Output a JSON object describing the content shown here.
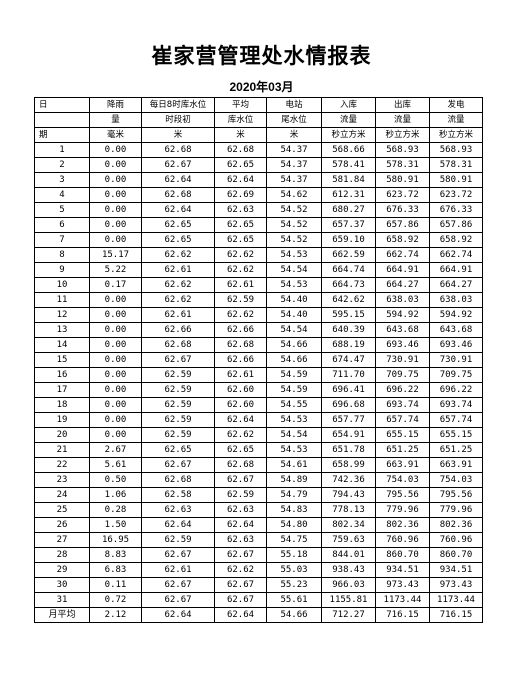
{
  "title": "崔家营管理处水情报表",
  "subtitle": "2020年03月",
  "header_rows": [
    [
      "日",
      "降雨",
      "每日8时库水位",
      "平均",
      "电站",
      "入库",
      "出库",
      "发电"
    ],
    [
      "",
      "量",
      "时段初",
      "库水位",
      "尾水位",
      "流量",
      "流量",
      "流量"
    ],
    [
      "期",
      "毫米",
      "米",
      "米",
      "米",
      "秒立方米",
      "秒立方米",
      "秒立方米"
    ]
  ],
  "rows": [
    [
      "1",
      "0.00",
      "62.68",
      "62.68",
      "54.37",
      "568.66",
      "568.93",
      "568.93"
    ],
    [
      "2",
      "0.00",
      "62.67",
      "62.65",
      "54.37",
      "578.41",
      "578.31",
      "578.31"
    ],
    [
      "3",
      "0.00",
      "62.64",
      "62.64",
      "54.37",
      "581.84",
      "580.91",
      "580.91"
    ],
    [
      "4",
      "0.00",
      "62.68",
      "62.69",
      "54.62",
      "612.31",
      "623.72",
      "623.72"
    ],
    [
      "5",
      "0.00",
      "62.64",
      "62.63",
      "54.52",
      "680.27",
      "676.33",
      "676.33"
    ],
    [
      "6",
      "0.00",
      "62.65",
      "62.65",
      "54.52",
      "657.37",
      "657.86",
      "657.86"
    ],
    [
      "7",
      "0.00",
      "62.65",
      "62.65",
      "54.52",
      "659.10",
      "658.92",
      "658.92"
    ],
    [
      "8",
      "15.17",
      "62.62",
      "62.62",
      "54.53",
      "662.59",
      "662.74",
      "662.74"
    ],
    [
      "9",
      "5.22",
      "62.61",
      "62.62",
      "54.54",
      "664.74",
      "664.91",
      "664.91"
    ],
    [
      "10",
      "0.17",
      "62.62",
      "62.61",
      "54.53",
      "664.73",
      "664.27",
      "664.27"
    ],
    [
      "11",
      "0.00",
      "62.62",
      "62.59",
      "54.40",
      "642.62",
      "638.03",
      "638.03"
    ],
    [
      "12",
      "0.00",
      "62.61",
      "62.62",
      "54.40",
      "595.15",
      "594.92",
      "594.92"
    ],
    [
      "13",
      "0.00",
      "62.66",
      "62.66",
      "54.54",
      "640.39",
      "643.68",
      "643.68"
    ],
    [
      "14",
      "0.00",
      "62.68",
      "62.68",
      "54.66",
      "688.19",
      "693.46",
      "693.46"
    ],
    [
      "15",
      "0.00",
      "62.67",
      "62.66",
      "54.66",
      "674.47",
      "730.91",
      "730.91"
    ],
    [
      "16",
      "0.00",
      "62.59",
      "62.61",
      "54.59",
      "711.70",
      "709.75",
      "709.75"
    ],
    [
      "17",
      "0.00",
      "62.59",
      "62.60",
      "54.59",
      "696.41",
      "696.22",
      "696.22"
    ],
    [
      "18",
      "0.00",
      "62.59",
      "62.60",
      "54.55",
      "696.68",
      "693.74",
      "693.74"
    ],
    [
      "19",
      "0.00",
      "62.59",
      "62.64",
      "54.53",
      "657.77",
      "657.74",
      "657.74"
    ],
    [
      "20",
      "0.00",
      "62.59",
      "62.62",
      "54.54",
      "654.91",
      "655.15",
      "655.15"
    ],
    [
      "21",
      "2.67",
      "62.65",
      "62.65",
      "54.53",
      "651.78",
      "651.25",
      "651.25"
    ],
    [
      "22",
      "5.61",
      "62.67",
      "62.68",
      "54.61",
      "658.99",
      "663.91",
      "663.91"
    ],
    [
      "23",
      "0.50",
      "62.68",
      "62.67",
      "54.89",
      "742.36",
      "754.03",
      "754.03"
    ],
    [
      "24",
      "1.06",
      "62.58",
      "62.59",
      "54.79",
      "794.43",
      "795.56",
      "795.56"
    ],
    [
      "25",
      "0.28",
      "62.63",
      "62.63",
      "54.83",
      "778.13",
      "779.96",
      "779.96"
    ],
    [
      "26",
      "1.50",
      "62.64",
      "62.64",
      "54.80",
      "802.34",
      "802.36",
      "802.36"
    ],
    [
      "27",
      "16.95",
      "62.59",
      "62.63",
      "54.75",
      "759.63",
      "760.96",
      "760.96"
    ],
    [
      "28",
      "8.83",
      "62.67",
      "62.67",
      "55.18",
      "844.01",
      "860.70",
      "860.70"
    ],
    [
      "29",
      "6.83",
      "62.61",
      "62.62",
      "55.03",
      "938.43",
      "934.51",
      "934.51"
    ],
    [
      "30",
      "0.11",
      "62.67",
      "62.67",
      "55.23",
      "966.03",
      "973.43",
      "973.43"
    ],
    [
      "31",
      "0.72",
      "62.67",
      "62.67",
      "55.61",
      "1155.81",
      "1173.44",
      "1173.44"
    ]
  ],
  "summary": [
    "月平均",
    "2.12",
    "62.64",
    "62.64",
    "54.66",
    "712.27",
    "716.15",
    "716.15"
  ]
}
